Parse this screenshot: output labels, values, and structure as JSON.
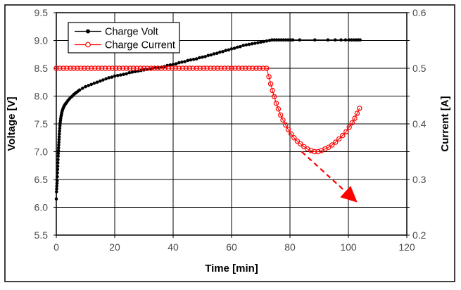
{
  "figure": {
    "background": "#ffffff",
    "outer_border_color": "#000000"
  },
  "styles": {
    "tick_label_color": "#4a4a4a",
    "axis_title_color": "#000000",
    "legend_text_color": "#000000",
    "grid_color": "#000000",
    "plot_border_color": "#000000"
  },
  "chart_data": {
    "type": "line",
    "title": "",
    "x_axis": {
      "label": "Time [min]",
      "min": 0,
      "max": 120,
      "tick_step": 20,
      "ticks": [
        0,
        20,
        40,
        60,
        80,
        100,
        120
      ]
    },
    "y_axis_left": {
      "label": "Voltage [V]",
      "min": 5.5,
      "max": 9.5,
      "tick_step": 0.5,
      "ticks": [
        5.5,
        6.0,
        6.5,
        7.0,
        7.5,
        8.0,
        8.5,
        9.0,
        9.5
      ]
    },
    "y_axis_right": {
      "label": "Current [A]",
      "min": 0.2,
      "max": 0.6,
      "minor_tick_step": 0.05,
      "labeled_ticks": [
        0.2,
        0.3,
        0.4,
        0.5,
        0.6
      ]
    },
    "grid": {
      "visible": true
    },
    "legend": {
      "position": "top-left-inside",
      "border_color": "#000000",
      "background": "#ffffff",
      "entries": [
        "Charge Volt",
        "Charge Current"
      ]
    },
    "series": [
      {
        "name": "Charge Volt",
        "axis": "left",
        "color": "#000000",
        "marker": "filled-circle",
        "points": [
          [
            0,
            6.15
          ],
          [
            0.08,
            6.28
          ],
          [
            0.13,
            6.33
          ],
          [
            0.18,
            6.38
          ],
          [
            0.23,
            6.43
          ],
          [
            0.28,
            6.48
          ],
          [
            0.33,
            6.55
          ],
          [
            0.38,
            6.62
          ],
          [
            0.43,
            6.68
          ],
          [
            0.48,
            6.74
          ],
          [
            0.53,
            6.8
          ],
          [
            0.58,
            6.86
          ],
          [
            0.63,
            6.92
          ],
          [
            0.68,
            6.97
          ],
          [
            0.73,
            7.02
          ],
          [
            0.78,
            7.07
          ],
          [
            0.83,
            7.12
          ],
          [
            0.88,
            7.17
          ],
          [
            0.93,
            7.22
          ],
          [
            0.98,
            7.27
          ],
          [
            1.03,
            7.32
          ],
          [
            1.1,
            7.37
          ],
          [
            1.17,
            7.42
          ],
          [
            1.25,
            7.47
          ],
          [
            1.33,
            7.52
          ],
          [
            1.42,
            7.56
          ],
          [
            1.52,
            7.6
          ],
          [
            1.63,
            7.64
          ],
          [
            1.75,
            7.67
          ],
          [
            1.88,
            7.7
          ],
          [
            2,
            7.73
          ],
          [
            2.2,
            7.76
          ],
          [
            2.4,
            7.79
          ],
          [
            2.6,
            7.81
          ],
          [
            2.8,
            7.83
          ],
          [
            3,
            7.85
          ],
          [
            3.3,
            7.87
          ],
          [
            3.6,
            7.89
          ],
          [
            4,
            7.92
          ],
          [
            4.5,
            7.95
          ],
          [
            5,
            7.98
          ],
          [
            5.5,
            8.0
          ],
          [
            6,
            8.03
          ],
          [
            6.5,
            8.05
          ],
          [
            7,
            8.07
          ],
          [
            7.5,
            8.09
          ],
          [
            8,
            8.11
          ],
          [
            9,
            8.14
          ],
          [
            10,
            8.17
          ],
          [
            11,
            8.19
          ],
          [
            12,
            8.21
          ],
          [
            13,
            8.23
          ],
          [
            14,
            8.25
          ],
          [
            15,
            8.27
          ],
          [
            16,
            8.29
          ],
          [
            17,
            8.31
          ],
          [
            18,
            8.33
          ],
          [
            19,
            8.34
          ],
          [
            20,
            8.36
          ],
          [
            21,
            8.37
          ],
          [
            22,
            8.38
          ],
          [
            23,
            8.39
          ],
          [
            24,
            8.4
          ],
          [
            25,
            8.42
          ],
          [
            26,
            8.43
          ],
          [
            27,
            8.44
          ],
          [
            28,
            8.45
          ],
          [
            29,
            8.46
          ],
          [
            30,
            8.47
          ],
          [
            31,
            8.48
          ],
          [
            32,
            8.49
          ],
          [
            33,
            8.5
          ],
          [
            34,
            8.51
          ],
          [
            35,
            8.51
          ],
          [
            36,
            8.52
          ],
          [
            37,
            8.53
          ],
          [
            38,
            8.55
          ],
          [
            39,
            8.56
          ],
          [
            40,
            8.57
          ],
          [
            41,
            8.58
          ],
          [
            42,
            8.6
          ],
          [
            43,
            8.61
          ],
          [
            44,
            8.62
          ],
          [
            45,
            8.64
          ],
          [
            46,
            8.65
          ],
          [
            47,
            8.66
          ],
          [
            48,
            8.67
          ],
          [
            49,
            8.69
          ],
          [
            50,
            8.7
          ],
          [
            51,
            8.71
          ],
          [
            52,
            8.73
          ],
          [
            53,
            8.74
          ],
          [
            54,
            8.76
          ],
          [
            55,
            8.77
          ],
          [
            56,
            8.79
          ],
          [
            57,
            8.8
          ],
          [
            58,
            8.82
          ],
          [
            59,
            8.83
          ],
          [
            60,
            8.85
          ],
          [
            61,
            8.86
          ],
          [
            62,
            8.88
          ],
          [
            63,
            8.89
          ],
          [
            64,
            8.91
          ],
          [
            65,
            8.92
          ],
          [
            66,
            8.93
          ],
          [
            67,
            8.94
          ],
          [
            68,
            8.95
          ],
          [
            69,
            8.96
          ],
          [
            70,
            8.97
          ],
          [
            71,
            8.98
          ],
          [
            72,
            8.99
          ],
          [
            73,
            9.0
          ],
          [
            73.8,
            9.01
          ],
          [
            74.6,
            9.01
          ],
          [
            75.4,
            9.01
          ],
          [
            76.2,
            9.01
          ],
          [
            77,
            9.01
          ],
          [
            77.8,
            9.01
          ],
          [
            78.6,
            9.01
          ],
          [
            79.4,
            9.01
          ],
          [
            80.2,
            9.01
          ],
          [
            81,
            9.01
          ],
          [
            83.3,
            9.01
          ],
          [
            88.5,
            9.01
          ],
          [
            93,
            9.01
          ],
          [
            95.5,
            9.01
          ],
          [
            97.5,
            9.01
          ],
          [
            99,
            9.01
          ],
          [
            100.2,
            9.01
          ],
          [
            101,
            9.01
          ],
          [
            101.8,
            9.01
          ],
          [
            102.6,
            9.01
          ],
          [
            103.3,
            9.01
          ],
          [
            104,
            9.01
          ]
        ]
      },
      {
        "name": "Charge Current",
        "axis": "right",
        "color": "#ff0000",
        "marker": "open-circle",
        "points": [
          [
            0,
            0.5
          ],
          [
            1.2,
            0.5
          ],
          [
            2.4,
            0.5
          ],
          [
            3.6,
            0.5
          ],
          [
            4.8,
            0.5
          ],
          [
            6,
            0.5
          ],
          [
            7.2,
            0.5
          ],
          [
            8.4,
            0.5
          ],
          [
            9.6,
            0.5
          ],
          [
            10.8,
            0.5
          ],
          [
            12,
            0.5
          ],
          [
            13.2,
            0.5
          ],
          [
            14.4,
            0.5
          ],
          [
            15.6,
            0.5
          ],
          [
            16.8,
            0.5
          ],
          [
            18,
            0.5
          ],
          [
            19.2,
            0.5
          ],
          [
            20.4,
            0.5
          ],
          [
            21.6,
            0.5
          ],
          [
            22.8,
            0.5
          ],
          [
            24,
            0.5
          ],
          [
            25.2,
            0.5
          ],
          [
            26.4,
            0.5
          ],
          [
            27.6,
            0.5
          ],
          [
            28.8,
            0.5
          ],
          [
            30,
            0.5
          ],
          [
            31.2,
            0.5
          ],
          [
            32.4,
            0.5
          ],
          [
            33.6,
            0.5
          ],
          [
            34.8,
            0.5
          ],
          [
            36,
            0.5
          ],
          [
            37.2,
            0.5
          ],
          [
            38.4,
            0.5
          ],
          [
            39.6,
            0.5
          ],
          [
            40.8,
            0.5
          ],
          [
            42,
            0.5
          ],
          [
            43.2,
            0.5
          ],
          [
            44.4,
            0.5
          ],
          [
            45.6,
            0.5
          ],
          [
            46.8,
            0.5
          ],
          [
            48,
            0.5
          ],
          [
            49.2,
            0.5
          ],
          [
            50.4,
            0.5
          ],
          [
            51.6,
            0.5
          ],
          [
            52.8,
            0.5
          ],
          [
            54,
            0.5
          ],
          [
            55.2,
            0.5
          ],
          [
            56.4,
            0.5
          ],
          [
            57.6,
            0.5
          ],
          [
            58.8,
            0.5
          ],
          [
            60,
            0.5
          ],
          [
            61.2,
            0.5
          ],
          [
            62.4,
            0.5
          ],
          [
            63.6,
            0.5
          ],
          [
            64.8,
            0.5
          ],
          [
            66,
            0.5
          ],
          [
            67.2,
            0.5
          ],
          [
            68.4,
            0.5
          ],
          [
            69.6,
            0.5
          ],
          [
            70.8,
            0.5
          ],
          [
            72,
            0.5
          ],
          [
            72.8,
            0.485
          ],
          [
            73.4,
            0.472
          ],
          [
            74,
            0.46
          ],
          [
            74.6,
            0.449
          ],
          [
            75.3,
            0.437
          ],
          [
            76,
            0.427
          ],
          [
            76.8,
            0.416
          ],
          [
            77.6,
            0.407
          ],
          [
            78.5,
            0.398
          ],
          [
            79.4,
            0.39
          ],
          [
            80.4,
            0.382
          ],
          [
            81.4,
            0.375
          ],
          [
            82.5,
            0.369
          ],
          [
            83.6,
            0.364
          ],
          [
            84.8,
            0.359
          ],
          [
            86,
            0.355
          ],
          [
            87.2,
            0.352
          ],
          [
            88.4,
            0.35
          ],
          [
            89.6,
            0.35
          ],
          [
            90.8,
            0.352
          ],
          [
            92,
            0.355
          ],
          [
            93.2,
            0.358
          ],
          [
            94.4,
            0.362
          ],
          [
            95.6,
            0.367
          ],
          [
            96.8,
            0.373
          ],
          [
            98,
            0.379
          ],
          [
            99.2,
            0.386
          ],
          [
            100.3,
            0.394
          ],
          [
            101.3,
            0.402
          ],
          [
            102.2,
            0.41
          ],
          [
            103,
            0.419
          ],
          [
            103.8,
            0.428
          ]
        ]
      }
    ],
    "annotation": {
      "type": "arrow",
      "style": "dashed",
      "color": "#ff0000",
      "axis": "right",
      "from": [
        84,
        0.35
      ],
      "to": [
        102.3,
        0.2625
      ]
    }
  }
}
